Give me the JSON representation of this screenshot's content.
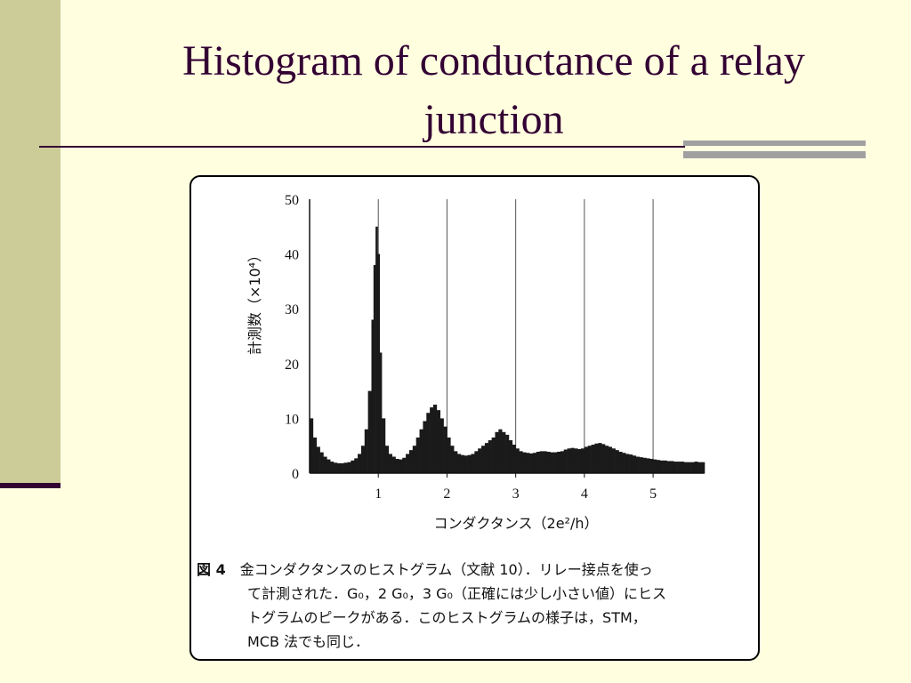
{
  "slide": {
    "title": "Histogram of  conductance of a relay\njunction"
  },
  "colors": {
    "background": "#ffffe0",
    "band": "#cccc99",
    "title": "#330033",
    "accent_grey": "#a0a0a0"
  },
  "chart_data": {
    "type": "bar",
    "title": "",
    "xlabel": "コンダクタンス（2e²/h）",
    "ylabel": "計測数（×10⁴）",
    "xlim": [
      0,
      5.75
    ],
    "ylim": [
      0,
      50
    ],
    "xticks": [
      "1",
      "2",
      "3",
      "4",
      "5"
    ],
    "yticks": [
      "0",
      "10",
      "20",
      "30",
      "40",
      "50"
    ],
    "grid": "vertical lines at x = 1, 2, 3, 4, 5",
    "x": [
      0.0,
      0.05,
      0.1,
      0.15,
      0.2,
      0.25,
      0.3,
      0.35,
      0.4,
      0.45,
      0.5,
      0.55,
      0.6,
      0.65,
      0.7,
      0.75,
      0.8,
      0.85,
      0.9,
      0.93,
      0.96,
      0.99,
      1.02,
      1.05,
      1.1,
      1.15,
      1.2,
      1.25,
      1.3,
      1.35,
      1.4,
      1.45,
      1.5,
      1.55,
      1.6,
      1.65,
      1.7,
      1.75,
      1.8,
      1.85,
      1.9,
      1.95,
      2.0,
      2.05,
      2.1,
      2.15,
      2.2,
      2.25,
      2.3,
      2.35,
      2.4,
      2.45,
      2.5,
      2.55,
      2.6,
      2.65,
      2.7,
      2.75,
      2.8,
      2.85,
      2.9,
      2.95,
      3.0,
      3.05,
      3.1,
      3.15,
      3.2,
      3.25,
      3.3,
      3.35,
      3.4,
      3.45,
      3.5,
      3.55,
      3.6,
      3.65,
      3.7,
      3.75,
      3.8,
      3.85,
      3.9,
      3.95,
      4.0,
      4.05,
      4.1,
      4.15,
      4.2,
      4.25,
      4.3,
      4.35,
      4.4,
      4.45,
      4.5,
      4.55,
      4.6,
      4.65,
      4.7,
      4.75,
      4.8,
      4.85,
      4.9,
      4.95,
      5.0,
      5.05,
      5.1,
      5.15,
      5.2,
      5.25,
      5.3,
      5.35,
      5.4,
      5.45,
      5.5,
      5.55,
      5.6,
      5.65,
      5.7
    ],
    "values": [
      10,
      6.5,
      4.8,
      3.8,
      3.0,
      2.5,
      2.1,
      1.9,
      1.8,
      1.8,
      1.9,
      2.0,
      2.3,
      2.7,
      3.5,
      5.0,
      8.0,
      15,
      28,
      38,
      45,
      40,
      22,
      10,
      5.0,
      3.5,
      3.0,
      2.6,
      2.5,
      2.8,
      3.5,
      4.2,
      5.0,
      6.5,
      8.0,
      9.5,
      11,
      12,
      12.5,
      11.5,
      10,
      8.5,
      6.5,
      5.0,
      4.0,
      3.5,
      3.3,
      3.2,
      3.3,
      3.5,
      4.0,
      4.5,
      5.0,
      5.5,
      6.0,
      6.5,
      7.5,
      8.0,
      7.5,
      7.0,
      6.0,
      5.2,
      4.5,
      4.0,
      3.8,
      3.7,
      3.6,
      3.7,
      3.9,
      4.0,
      4.0,
      3.9,
      3.8,
      3.8,
      3.9,
      4.0,
      4.3,
      4.5,
      4.6,
      4.5,
      4.4,
      4.5,
      4.8,
      5.0,
      5.2,
      5.4,
      5.5,
      5.3,
      5.0,
      4.8,
      4.5,
      4.2,
      3.9,
      3.7,
      3.5,
      3.4,
      3.2,
      3.0,
      2.9,
      2.8,
      2.7,
      2.6,
      2.5,
      2.4,
      2.3,
      2.3,
      2.2,
      2.2,
      2.1,
      2.1,
      2.1,
      2.0,
      2.0,
      2.0,
      2.1,
      2.0,
      2.0
    ]
  },
  "caption": {
    "figure_label": "図 4",
    "line1": "金コンダクタンスのヒストグラム（文献 10）．リレー接点を使っ",
    "line2": "て計測された．G₀，2 G₀，3 G₀（正確には少し小さい値）にヒス",
    "line3": "トグラムのピークがある．このヒストグラムの様子は，STM，",
    "line4": "MCB 法でも同じ．"
  }
}
